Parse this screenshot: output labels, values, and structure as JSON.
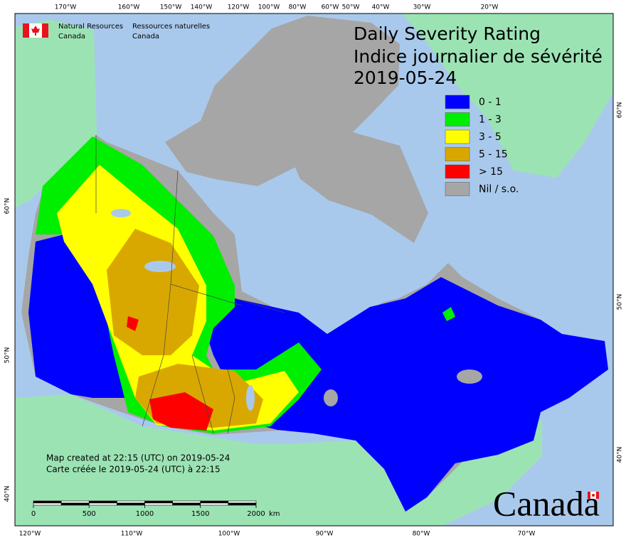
{
  "agency": {
    "en_line1": "Natural Resources",
    "en_line2": "Canada",
    "fr_line1": "Ressources naturelles",
    "fr_line2": "Canada"
  },
  "title": {
    "line1": "Daily Severity Rating",
    "line2": "Indice journalier de sévérité",
    "date": "2019-05-24"
  },
  "legend": [
    {
      "label": "0 - 1",
      "color": "#0000ff"
    },
    {
      "label": "1 - 3",
      "color": "#00ee00"
    },
    {
      "label": "3 - 5",
      "color": "#ffff00"
    },
    {
      "label": "5 - 15",
      "color": "#d9a800"
    },
    {
      "label": "> 15",
      "color": "#ff0000"
    },
    {
      "label": "Nil / s.o.",
      "color": "#a6a6a6"
    }
  ],
  "graticule": {
    "top": [
      "170°W",
      "160°W",
      "150°W",
      "140°W",
      "120°W",
      "100°W",
      "80°W",
      "60°W",
      "50°W",
      "40°W",
      "30°W",
      "20°W"
    ],
    "bottom": [
      "120°W",
      "110°W",
      "100°W",
      "90°W",
      "80°W",
      "70°W"
    ],
    "left": [
      "60°N",
      "50°N",
      "40°N"
    ],
    "right": [
      "60°N",
      "50°N",
      "40°N"
    ]
  },
  "footer": {
    "line1": "Map created at 22:15 (UTC) on 2019-05-24",
    "line2": "Carte créée le 2019-05-24 (UTC) à 22:15"
  },
  "scale": {
    "labels": [
      "0",
      "500",
      "1000",
      "1500",
      "2000"
    ],
    "unit": "km"
  },
  "wordmark": "Canada"
}
